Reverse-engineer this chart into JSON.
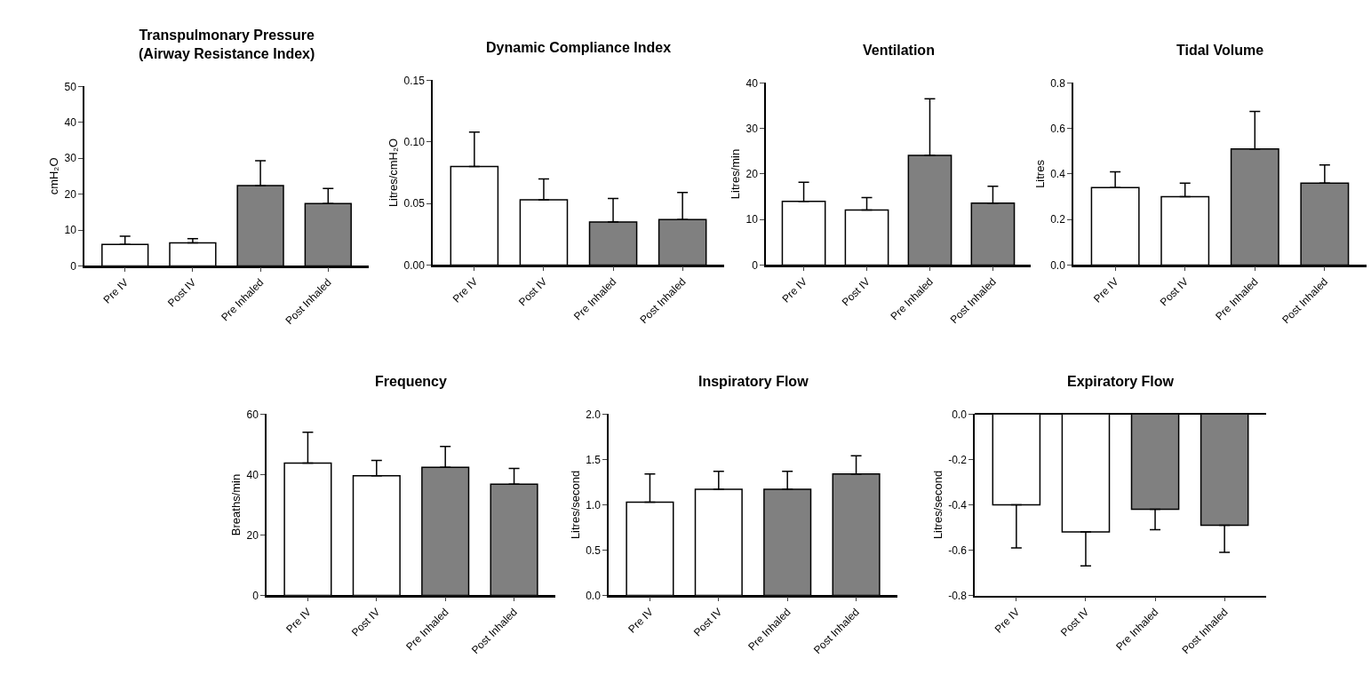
{
  "chart_data": [
    {
      "type": "bar",
      "title": "Transpulmonary Pressure\n(Airway Resistance Index)",
      "ylabel": "cmH₂O",
      "categories": [
        "Pre IV",
        "Post IV",
        "Pre Inhaled",
        "Post Inhaled"
      ],
      "values": [
        6,
        6.4,
        22.4,
        17.4
      ],
      "colors": [
        "#ffffff",
        "#ffffff",
        "#808080",
        "#808080"
      ],
      "errors": [
        [
          6,
          8.3
        ],
        [
          6.4,
          7.6
        ],
        [
          22.4,
          29.3
        ],
        [
          17.4,
          21.6
        ]
      ],
      "ylim": [
        0,
        50
      ],
      "yticks": [
        0,
        10,
        20,
        30,
        40,
        50
      ]
    },
    {
      "type": "bar",
      "title": "Dynamic Compliance Index",
      "ylabel": "Litres/cmH₂O",
      "categories": [
        "Pre IV",
        "Post IV",
        "Pre Inhaled",
        "Post Inhaled"
      ],
      "values": [
        0.08,
        0.053,
        0.035,
        0.037
      ],
      "colors": [
        "#ffffff",
        "#ffffff",
        "#808080",
        "#808080"
      ],
      "errors": [
        [
          0.08,
          0.108
        ],
        [
          0.053,
          0.07
        ],
        [
          0.035,
          0.054
        ],
        [
          0.037,
          0.059
        ]
      ],
      "ylim": [
        0,
        0.15
      ],
      "yticks": [
        {
          "value": 0,
          "label": "0.00"
        },
        0.05,
        {
          "value": 0.1,
          "label": "0.10"
        },
        0.15
      ]
    },
    {
      "type": "bar",
      "title": "Ventilation",
      "ylabel": "Litres/min",
      "categories": [
        "Pre IV",
        "Post IV",
        "Pre Inhaled",
        "Post Inhaled"
      ],
      "values": [
        14,
        12.1,
        24.1,
        13.6
      ],
      "colors": [
        "#ffffff",
        "#ffffff",
        "#808080",
        "#808080"
      ],
      "errors": [
        [
          14,
          18.2
        ],
        [
          12.1,
          14.8
        ],
        [
          24.1,
          36.5
        ],
        [
          13.6,
          17.3
        ]
      ],
      "ylim": [
        0,
        40
      ],
      "yticks": [
        0,
        10,
        20,
        30,
        40
      ]
    },
    {
      "type": "bar",
      "title": "Tidal Volume",
      "ylabel": "Litres",
      "categories": [
        "Pre IV",
        "Post IV",
        "Pre Inhaled",
        "Post Inhaled"
      ],
      "values": [
        0.34,
        0.3,
        0.51,
        0.36
      ],
      "colors": [
        "#ffffff",
        "#ffffff",
        "#808080",
        "#808080"
      ],
      "errors": [
        [
          0.34,
          0.41
        ],
        [
          0.3,
          0.36
        ],
        [
          0.51,
          0.675
        ],
        [
          0.36,
          0.44
        ]
      ],
      "ylim": [
        0,
        0.8
      ],
      "yticks": [
        {
          "value": 0,
          "label": "0.0"
        },
        0.2,
        0.4,
        0.6,
        0.8
      ]
    },
    {
      "type": "bar",
      "title": "Frequency",
      "ylabel": "Breaths/min",
      "categories": [
        "Pre IV",
        "Post IV",
        "Pre Inhaled",
        "Post Inhaled"
      ],
      "values": [
        43.8,
        39.6,
        42.4,
        36.8
      ],
      "colors": [
        "#ffffff",
        "#ffffff",
        "#808080",
        "#808080"
      ],
      "errors": [
        [
          43.8,
          54
        ],
        [
          39.6,
          44.7
        ],
        [
          42.4,
          49.3
        ],
        [
          36.8,
          42
        ]
      ],
      "ylim": [
        0,
        60
      ],
      "yticks": [
        0,
        20,
        40,
        60
      ]
    },
    {
      "type": "bar",
      "title": "Inspiratory Flow",
      "ylabel": "Litres/second",
      "categories": [
        "Pre IV",
        "Post IV",
        "Pre Inhaled",
        "Post Inhaled"
      ],
      "values": [
        1.03,
        1.17,
        1.17,
        1.34
      ],
      "colors": [
        "#ffffff",
        "#ffffff",
        "#808080",
        "#808080"
      ],
      "errors": [
        [
          1.03,
          1.34
        ],
        [
          1.17,
          1.37
        ],
        [
          1.17,
          1.37
        ],
        [
          1.34,
          1.54
        ]
      ],
      "ylim": [
        0,
        2
      ],
      "yticks": [
        {
          "value": 0,
          "label": "0.0"
        },
        0.5,
        {
          "value": 1,
          "label": "1.0"
        },
        1.5,
        {
          "value": 2,
          "label": "2.0"
        }
      ]
    },
    {
      "type": "bar",
      "title": "Expiratory Flow",
      "ylabel": "Litres/second",
      "categories": [
        "Pre IV",
        "Post IV",
        "Pre Inhaled",
        "Post Inhaled"
      ],
      "values": [
        -0.4,
        -0.52,
        -0.42,
        -0.49
      ],
      "colors": [
        "#ffffff",
        "#ffffff",
        "#808080",
        "#808080"
      ],
      "errors": [
        [
          -0.59,
          -0.4
        ],
        [
          -0.67,
          -0.52
        ],
        [
          -0.51,
          -0.42
        ],
        [
          -0.61,
          -0.49
        ]
      ],
      "ylim": [
        -0.8,
        0
      ],
      "yticks": [
        {
          "value": -0.8,
          "label": "-0.8"
        },
        -0.6,
        -0.4,
        -0.2,
        {
          "value": 0,
          "label": "0.0"
        }
      ]
    }
  ]
}
